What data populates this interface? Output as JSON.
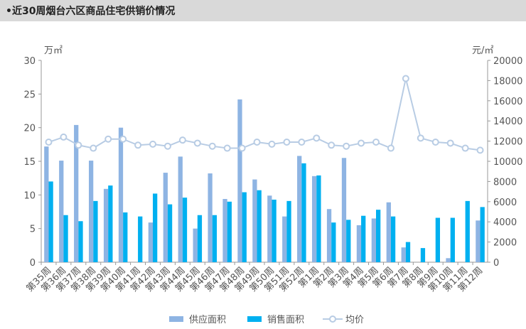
{
  "chart_data": {
    "type": "bar-line",
    "title": "•近30周烟台六区商品住宅供销价情况",
    "y_label": "万㎡",
    "y2_label": "元/㎡",
    "categories": [
      "第35周",
      "第36周",
      "第37周",
      "第38周",
      "第39周",
      "第40周",
      "第41周",
      "第42周",
      "第43周",
      "第44周",
      "第45周",
      "第46周",
      "第47周",
      "第48周",
      "第49周",
      "第50周",
      "第51周",
      "第52周",
      "第1周",
      "第2周",
      "第3周",
      "第4周",
      "第5周",
      "第6周",
      "第7周",
      "第8周",
      "第9周",
      "第10周",
      "第11周",
      "第12周"
    ],
    "series": [
      {
        "name": "供应面积",
        "type": "bar",
        "color": "#8eb4e3",
        "values": [
          17.2,
          15.1,
          20.4,
          15.1,
          10.9,
          20.0,
          0,
          5.9,
          13.3,
          15.7,
          5.0,
          13.2,
          9.4,
          24.2,
          12.3,
          9.9,
          6.8,
          15.8,
          12.8,
          7.9,
          15.5,
          5.5,
          6.5,
          8.9,
          2.2,
          0,
          0,
          0.6,
          0,
          6.2
        ]
      },
      {
        "name": "销售面积",
        "type": "bar",
        "color": "#00b0f0",
        "values": [
          12.0,
          7.0,
          6.1,
          9.1,
          11.4,
          7.4,
          6.8,
          10.2,
          8.6,
          9.6,
          7.0,
          7.0,
          9.0,
          10.4,
          10.7,
          9.3,
          9.1,
          14.7,
          12.9,
          5.9,
          6.3,
          6.9,
          7.8,
          6.8,
          3.0,
          2.1,
          6.6,
          6.6,
          9.1,
          8.2
        ]
      },
      {
        "name": "均价",
        "type": "line",
        "axis": "y2",
        "color": "#b8cce4",
        "values": [
          11900,
          12400,
          11600,
          11300,
          12200,
          12200,
          11600,
          11700,
          11500,
          12100,
          11800,
          11500,
          11300,
          11300,
          11900,
          11700,
          11900,
          11900,
          12300,
          11600,
          11500,
          11800,
          11900,
          11300,
          18200,
          12300,
          11900,
          11800,
          11300,
          11100
        ]
      }
    ],
    "ylim": [
      0,
      30
    ],
    "yticks": [
      0,
      5,
      10,
      15,
      20,
      25,
      30
    ],
    "y2lim": [
      0,
      20000
    ],
    "y2ticks": [
      0,
      2000,
      4000,
      6000,
      8000,
      10000,
      12000,
      14000,
      16000,
      18000,
      20000
    ]
  }
}
